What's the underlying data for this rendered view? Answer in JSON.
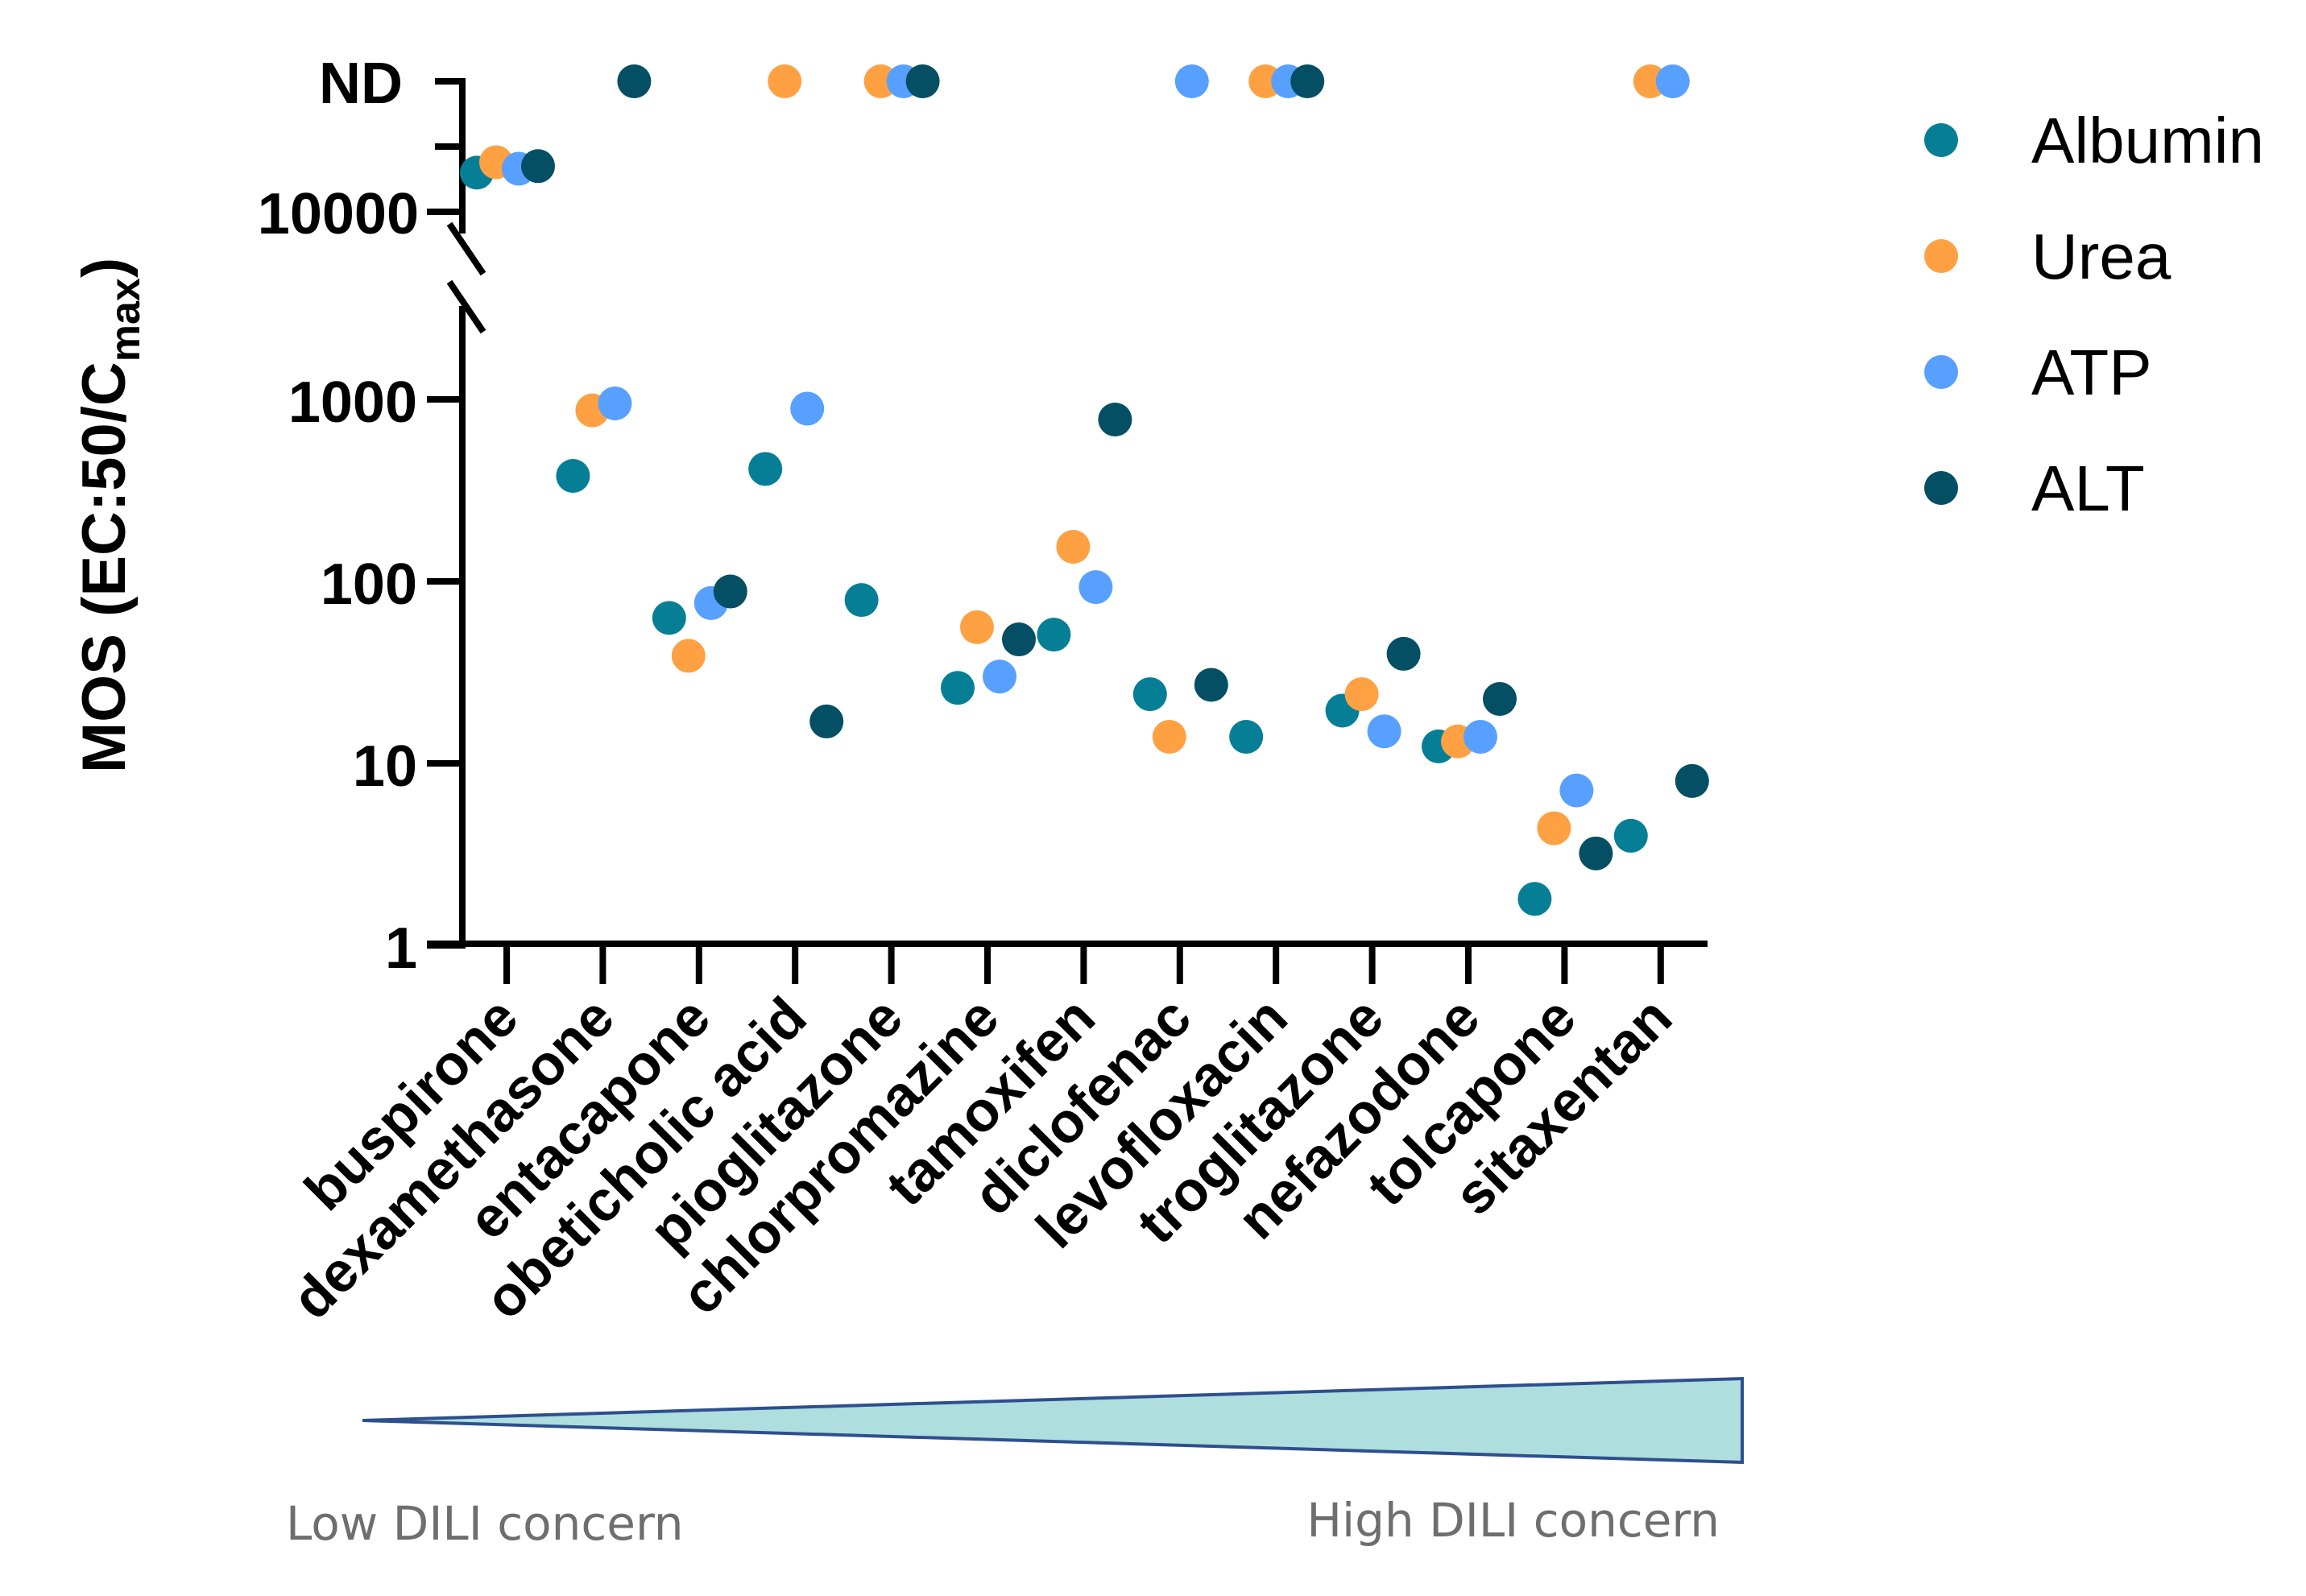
{
  "chart_data": {
    "type": "scatter",
    "title": "",
    "ylabel": "MOS (EC:50/C",
    "ylabel_sub": "max",
    "ylabel_close": ")",
    "yscale": "log",
    "ylim": [
      1,
      10000
    ],
    "yticks": [
      {
        "value": 1,
        "label": "1"
      },
      {
        "value": 10,
        "label": "10"
      },
      {
        "value": 100,
        "label": "100"
      },
      {
        "value": 1000,
        "label": "1000"
      }
    ],
    "upper_segment": {
      "tick_label_low": "10000",
      "tick_label_high": "ND",
      "low_value": 10000,
      "mid_value": 15000,
      "note": "axis break between 1000 and 10000"
    },
    "categories": [
      "buspirone",
      "dexamethasone",
      "entacapone",
      "obeticholic acid",
      "pioglitazone",
      "chlorpromazine",
      "tamoxifen",
      "diclofenac",
      "levofloxacin",
      "troglitazone",
      "nefazodone",
      "tolcapone",
      "sitaxentan"
    ],
    "series": [
      {
        "name": "Albumin",
        "color": "#067F96",
        "values": [
          13000,
          380,
          63,
          415,
          79,
          26,
          51,
          24,
          14,
          19.5,
          12.4,
          1.8,
          4.0
        ]
      },
      {
        "name": "Urea",
        "color": "#FFA142",
        "values": [
          13800,
          870,
          39,
          "ND",
          "ND",
          56,
          155,
          14,
          "ND",
          24,
          13.2,
          4.4,
          "ND"
        ]
      },
      {
        "name": "ATP",
        "color": "#57A0FF",
        "values": [
          13300,
          950,
          76,
          890,
          "ND",
          30,
          93,
          "ND",
          "ND",
          15,
          14,
          7.1,
          "ND"
        ]
      },
      {
        "name": "ALT",
        "color": "#044F63",
        "values": [
          13500,
          "ND",
          88,
          17,
          "ND",
          48,
          775,
          27,
          "ND",
          40,
          22.6,
          3.2,
          8.0
        ]
      }
    ],
    "legend": {
      "position": "top-right",
      "entries": [
        "Albumin",
        "Urea",
        "ATP",
        "ALT"
      ]
    },
    "grid": false
  },
  "dili_scale": {
    "low_label": "Low DILI concern",
    "high_label": "High DILI concern",
    "fill_color": "#AEDEDE",
    "stroke_color": "#2E4F8F"
  }
}
